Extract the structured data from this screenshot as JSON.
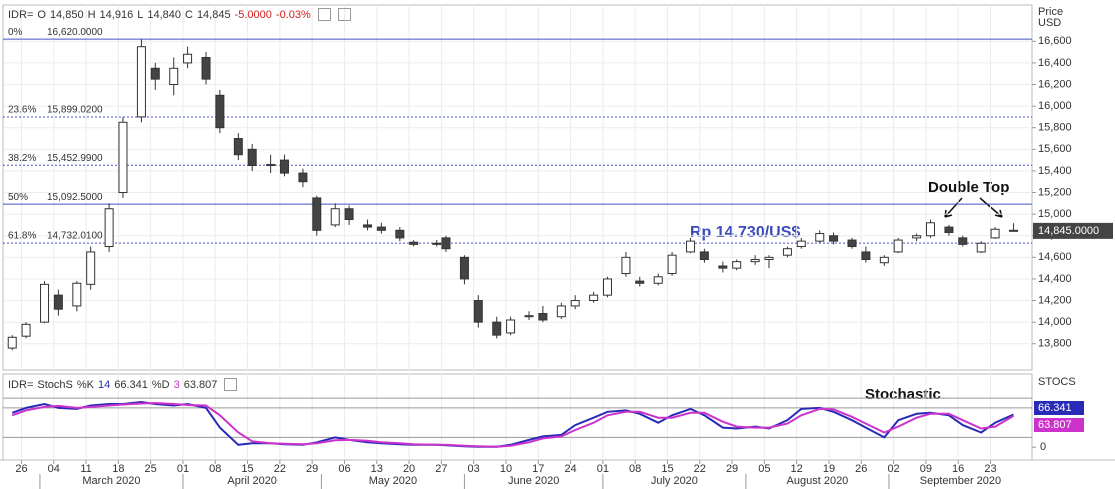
{
  "chart_data": [
    {
      "type": "candlestick",
      "header": {
        "symbol": "IDR=",
        "open_label": "O",
        "open": "14,850",
        "high_label": "H",
        "high": "14,916",
        "low_label": "L",
        "low": "14,840",
        "close_label": "C",
        "close": "14,845",
        "change": "-5.0000",
        "change_pct": "-0.03%"
      },
      "axis_title": [
        "Price",
        "USD"
      ],
      "x": [
        "2020-02-24",
        "2020-02-27",
        "2020-03-02",
        "2020-03-05",
        "2020-03-09",
        "2020-03-12",
        "2020-03-16",
        "2020-03-19",
        "2020-03-23",
        "2020-03-26",
        "2020-03-30",
        "2020-04-02",
        "2020-04-06",
        "2020-04-09",
        "2020-04-13",
        "2020-04-16",
        "2020-04-20",
        "2020-04-23",
        "2020-04-27",
        "2020-04-30",
        "2020-05-04",
        "2020-05-07",
        "2020-05-11",
        "2020-05-14",
        "2020-05-18",
        "2020-05-21",
        "2020-05-26",
        "2020-05-28",
        "2020-06-01",
        "2020-06-04",
        "2020-06-08",
        "2020-06-11",
        "2020-06-15",
        "2020-06-18",
        "2020-06-22",
        "2020-06-25",
        "2020-06-29",
        "2020-07-02",
        "2020-07-06",
        "2020-07-09",
        "2020-07-13",
        "2020-07-16",
        "2020-07-20",
        "2020-07-23",
        "2020-07-27",
        "2020-07-30",
        "2020-08-03",
        "2020-08-06",
        "2020-08-10",
        "2020-08-13",
        "2020-08-17",
        "2020-08-20",
        "2020-08-24",
        "2020-08-27",
        "2020-08-31",
        "2020-09-03",
        "2020-09-07",
        "2020-09-10",
        "2020-09-14",
        "2020-09-17",
        "2020-09-21",
        "2020-09-24",
        "2020-09-28"
      ],
      "open": [
        13760,
        13870,
        14000,
        14250,
        14150,
        14350,
        14700,
        15200,
        15900,
        16350,
        16200,
        16400,
        16450,
        16100,
        15700,
        15600,
        15450,
        15500,
        15380,
        15150,
        14900,
        15050,
        14900,
        14880,
        14850,
        14740,
        14730,
        14780,
        14600,
        14200,
        14000,
        13900,
        14050,
        14080,
        14050,
        14150,
        14200,
        14250,
        14450,
        14380,
        14360,
        14450,
        14650,
        14650,
        14520,
        14500,
        14560,
        14580,
        14620,
        14700,
        14750,
        14800,
        14760,
        14650,
        14550,
        14650,
        14780,
        14800,
        14880,
        14780,
        14650,
        14780,
        14850
      ],
      "high": [
        13880,
        14000,
        14380,
        14300,
        14380,
        14700,
        15100,
        15900,
        16620,
        16400,
        16450,
        16550,
        16500,
        16150,
        15750,
        15650,
        15550,
        15550,
        15420,
        15170,
        15100,
        15080,
        14950,
        14920,
        14880,
        14760,
        14760,
        14800,
        14620,
        14250,
        14050,
        14050,
        14100,
        14150,
        14180,
        14250,
        14280,
        14420,
        14650,
        14420,
        14450,
        14650,
        14780,
        14680,
        14560,
        14580,
        14620,
        14620,
        14700,
        14780,
        14850,
        14830,
        14780,
        14700,
        14620,
        14780,
        14820,
        14950,
        14900,
        14800,
        14750,
        14880,
        14916
      ],
      "low": [
        13740,
        13850,
        13990,
        14060,
        14100,
        14300,
        14650,
        15150,
        15850,
        16150,
        16100,
        16350,
        16200,
        15750,
        15500,
        15400,
        15380,
        15350,
        15250,
        14800,
        14880,
        14900,
        14850,
        14820,
        14750,
        14700,
        14700,
        14650,
        14350,
        13950,
        13850,
        13880,
        14020,
        14000,
        14030,
        14120,
        14180,
        14230,
        14420,
        14330,
        14340,
        14430,
        14640,
        14550,
        14460,
        14480,
        14530,
        14500,
        14600,
        14680,
        14730,
        14720,
        14680,
        14550,
        14520,
        14640,
        14750,
        14780,
        14800,
        14700,
        14640,
        14770,
        14840
      ],
      "close": [
        13860,
        13980,
        14350,
        14120,
        14360,
        14650,
        15050,
        15850,
        16550,
        16250,
        16350,
        16480,
        16250,
        15800,
        15550,
        15450,
        15460,
        15380,
        15300,
        14850,
        15050,
        14950,
        14880,
        14850,
        14780,
        14720,
        14720,
        14680,
        14400,
        14000,
        13880,
        14020,
        14060,
        14020,
        14150,
        14200,
        14250,
        14400,
        14600,
        14360,
        14420,
        14620,
        14750,
        14580,
        14500,
        14560,
        14580,
        14600,
        14680,
        14750,
        14820,
        14750,
        14700,
        14580,
        14600,
        14760,
        14800,
        14920,
        14830,
        14720,
        14730,
        14860,
        14845
      ],
      "bull_color": "#ffffff",
      "bear_color": "#444444",
      "xlim": [
        "2020-02-22",
        "2020-10-02"
      ],
      "xticks": [
        {
          "value": "2020-02-26",
          "label": "26"
        },
        {
          "value": "2020-03-04",
          "label": "04"
        },
        {
          "value": "2020-03-11",
          "label": "11"
        },
        {
          "value": "2020-03-18",
          "label": "18"
        },
        {
          "value": "2020-03-25",
          "label": "25"
        },
        {
          "value": "2020-04-01",
          "label": "01"
        },
        {
          "value": "2020-04-08",
          "label": "08"
        },
        {
          "value": "2020-04-15",
          "label": "15"
        },
        {
          "value": "2020-04-22",
          "label": "22"
        },
        {
          "value": "2020-04-29",
          "label": "29"
        },
        {
          "value": "2020-05-06",
          "label": "06"
        },
        {
          "value": "2020-05-13",
          "label": "13"
        },
        {
          "value": "2020-05-20",
          "label": "20"
        },
        {
          "value": "2020-05-27",
          "label": "27"
        },
        {
          "value": "2020-06-03",
          "label": "03"
        },
        {
          "value": "2020-06-10",
          "label": "10"
        },
        {
          "value": "2020-06-17",
          "label": "17"
        },
        {
          "value": "2020-06-24",
          "label": "24"
        },
        {
          "value": "2020-07-01",
          "label": "01"
        },
        {
          "value": "2020-07-08",
          "label": "08"
        },
        {
          "value": "2020-07-15",
          "label": "15"
        },
        {
          "value": "2020-07-22",
          "label": "22"
        },
        {
          "value": "2020-07-29",
          "label": "29"
        },
        {
          "value": "2020-08-05",
          "label": "05"
        },
        {
          "value": "2020-08-12",
          "label": "12"
        },
        {
          "value": "2020-08-19",
          "label": "19"
        },
        {
          "value": "2020-08-26",
          "label": "26"
        },
        {
          "value": "2020-09-02",
          "label": "02"
        },
        {
          "value": "2020-09-09",
          "label": "09"
        },
        {
          "value": "2020-09-16",
          "label": "16"
        },
        {
          "value": "2020-09-23",
          "label": "23"
        }
      ],
      "months": [
        {
          "value": "2020-03-01",
          "label": "March 2020"
        },
        {
          "value": "2020-04-01",
          "label": "April 2020"
        },
        {
          "value": "2020-05-01",
          "label": "May 2020"
        },
        {
          "value": "2020-06-01",
          "label": "June 2020"
        },
        {
          "value": "2020-07-01",
          "label": "July 2020"
        },
        {
          "value": "2020-08-01",
          "label": "August 2020"
        },
        {
          "value": "2020-09-01",
          "label": "September 2020"
        }
      ],
      "ylim": [
        13557,
        16936
      ],
      "yticks": [
        {
          "value": 13800,
          "label": "13,800"
        },
        {
          "value": 14000,
          "label": "14,000"
        },
        {
          "value": 14200,
          "label": "14,200"
        },
        {
          "value": 14400,
          "label": "14,400"
        },
        {
          "value": 14600,
          "label": "14,600"
        },
        {
          "value": 14800,
          "label": "14,800"
        },
        {
          "value": 15000,
          "label": "15,000"
        },
        {
          "value": 15200,
          "label": "15,200"
        },
        {
          "value": 15400,
          "label": "15,400"
        },
        {
          "value": 15600,
          "label": "15,600"
        },
        {
          "value": 15800,
          "label": "15,800"
        },
        {
          "value": 16000,
          "label": "16,000"
        },
        {
          "value": 16200,
          "label": "16,200"
        },
        {
          "value": 16400,
          "label": "16,400"
        },
        {
          "value": 16600,
          "label": "16,600"
        }
      ],
      "grid": true,
      "levels": [
        {
          "name": "0%",
          "value": 16620,
          "label": "16,620.0000",
          "style": "solid"
        },
        {
          "name": "23.6%",
          "value": 15899.02,
          "label": "15,899.0200",
          "style": "dotted"
        },
        {
          "name": "38.2%",
          "value": 15452.99,
          "label": "15,452.9900",
          "style": "dotted"
        },
        {
          "name": "50%",
          "value": 15092.5,
          "label": "15,092.5000",
          "style": "solid"
        },
        {
          "name": "61.8%",
          "value": 14732.01,
          "label": "14,732.0100",
          "style": "dotted"
        }
      ],
      "level_color": "#4450c0",
      "last_price": {
        "value": 14845,
        "label": "14,845.0000"
      },
      "annotations": [
        "Rp 14.730/US$",
        "Double Top"
      ]
    },
    {
      "type": "line",
      "header": {
        "symbol": "IDR=",
        "indicator": "StochS"
      },
      "axis_title": "STOCS",
      "annotation": "Stochastic",
      "series": [
        {
          "name": "%K",
          "period": 14,
          "color": "#2a2ab8",
          "values": [
            70,
            80,
            88,
            80,
            78,
            85,
            88,
            88,
            92,
            88,
            85,
            88,
            80,
            40,
            5,
            8,
            8,
            6,
            5,
            10,
            20,
            15,
            10,
            8,
            6,
            5,
            5,
            4,
            2,
            1,
            1,
            5,
            15,
            22,
            25,
            45,
            60,
            72,
            75,
            68,
            50,
            65,
            78,
            65,
            40,
            38,
            42,
            38,
            55,
            78,
            80,
            72,
            55,
            40,
            20,
            55,
            68,
            70,
            65,
            45,
            30,
            50,
            66.341
          ]
        },
        {
          "name": "%D",
          "period": 3,
          "color": "#cc33cc",
          "values": [
            65,
            75,
            82,
            84,
            80,
            82,
            85,
            87,
            89,
            90,
            88,
            86,
            85,
            65,
            30,
            12,
            8,
            7,
            6,
            8,
            14,
            15,
            13,
            10,
            8,
            6,
            5,
            5,
            3,
            2,
            1,
            3,
            10,
            18,
            22,
            35,
            50,
            65,
            72,
            72,
            60,
            60,
            70,
            70,
            52,
            42,
            40,
            40,
            48,
            65,
            78,
            77,
            62,
            48,
            30,
            42,
            60,
            68,
            68,
            55,
            38,
            42,
            63.807
          ]
        }
      ],
      "ylim": [
        -26,
        149
      ],
      "yticks": [
        0
      ],
      "levels": [
        100,
        80,
        20
      ]
    }
  ]
}
